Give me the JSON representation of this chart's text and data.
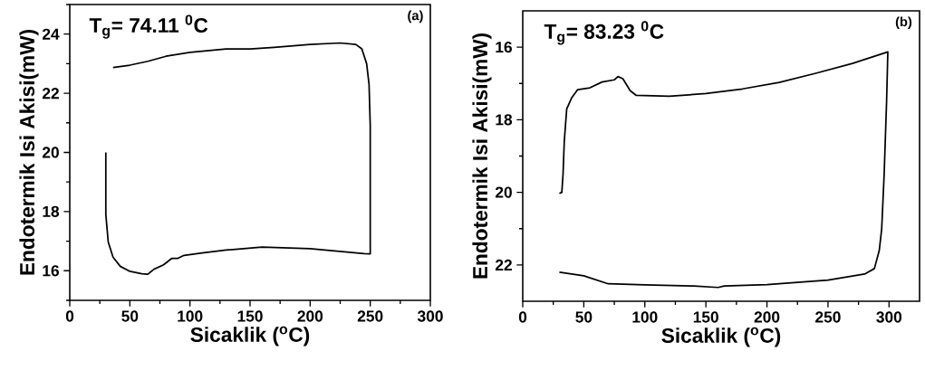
{
  "chart_data": [
    {
      "type": "line",
      "xlabel": "Sicaklik ($^{o}$C)",
      "ylabel": "Endotermik Isi Akisi(mW)",
      "annotations": [
        "T$_{g}$= 74.11 $^{0}$C",
        "(a)"
      ],
      "xlim": [
        0,
        300
      ],
      "ylim": [
        15,
        25
      ],
      "xticks": [
        0,
        {
          "value": 25,
          "label": null
        },
        50,
        {
          "value": 75,
          "label": null
        },
        100,
        {
          "value": 125,
          "label": null
        },
        150,
        {
          "value": 175,
          "label": null
        },
        200,
        {
          "value": 225,
          "label": null
        },
        250,
        {
          "value": 275,
          "label": null
        },
        300
      ],
      "yticks": [
        {
          "value": 15,
          "label": null
        },
        16,
        {
          "value": 17,
          "label": null
        },
        18,
        {
          "value": 19,
          "label": null
        },
        20,
        {
          "value": 21,
          "label": null
        },
        22,
        {
          "value": 23,
          "label": null
        },
        24,
        {
          "value": 25,
          "label": null
        }
      ],
      "series": [
        {
          "color": "#000000",
          "x": [
            30,
            30,
            32,
            36,
            42,
            50,
            60,
            65,
            70,
            78,
            85,
            90,
            95,
            110,
            130,
            160,
            200,
            245,
            250,
            250,
            249,
            247,
            243,
            238,
            225,
            200,
            170,
            150,
            130,
            100,
            80,
            65,
            50,
            36
          ],
          "values": [
            20.0,
            17.9,
            16.97,
            16.46,
            16.15,
            15.98,
            15.9,
            15.88,
            16.05,
            16.2,
            16.42,
            16.42,
            16.52,
            16.6,
            16.7,
            16.8,
            16.75,
            16.58,
            16.57,
            20.9,
            22.3,
            23.0,
            23.5,
            23.65,
            23.7,
            23.65,
            23.55,
            23.5,
            23.5,
            23.38,
            23.25,
            23.08,
            22.95,
            22.87
          ]
        }
      ]
    },
    {
      "type": "line",
      "xlabel": "Sicaklik ($^{o}$C)",
      "ylabel": "Endotermik Isi Akisi(mW)",
      "annotations": [
        "T$_{g}$= 83.23 $^{0}$C",
        "(b)"
      ],
      "xlim": [
        0,
        325
      ],
      "ylim": [
        23,
        15
      ],
      "xticks": [
        0,
        {
          "value": 25,
          "label": null
        },
        50,
        {
          "value": 75,
          "label": null
        },
        100,
        {
          "value": 125,
          "label": null
        },
        150,
        {
          "value": 175,
          "label": null
        },
        200,
        {
          "value": 225,
          "label": null
        },
        250,
        {
          "value": 275,
          "label": null
        },
        300
      ],
      "yticks": [
        16,
        {
          "value": 17,
          "label": null
        },
        18,
        {
          "value": 19,
          "label": null
        },
        20,
        {
          "value": 21,
          "label": null
        },
        22
      ],
      "series": [
        {
          "color": "#000000",
          "x": [
            30,
            32,
            33,
            34,
            36,
            40,
            45,
            55,
            65,
            75,
            78,
            82,
            88,
            93,
            120,
            150,
            180,
            210,
            240,
            270,
            299,
            299,
            298,
            296,
            294,
            292,
            288,
            280,
            250,
            200,
            165,
            160,
            140,
            100,
            70,
            50,
            30
          ],
          "values": [
            20.03,
            20.0,
            19.5,
            18.6,
            17.7,
            17.4,
            17.17,
            17.12,
            16.96,
            16.9,
            16.81,
            16.87,
            17.2,
            17.33,
            17.35,
            17.28,
            17.15,
            16.97,
            16.72,
            16.45,
            16.13,
            16.15,
            17.5,
            19.5,
            21.0,
            21.6,
            22.1,
            22.25,
            22.42,
            22.54,
            22.58,
            22.62,
            22.58,
            22.55,
            22.52,
            22.3,
            22.2
          ]
        }
      ]
    }
  ]
}
